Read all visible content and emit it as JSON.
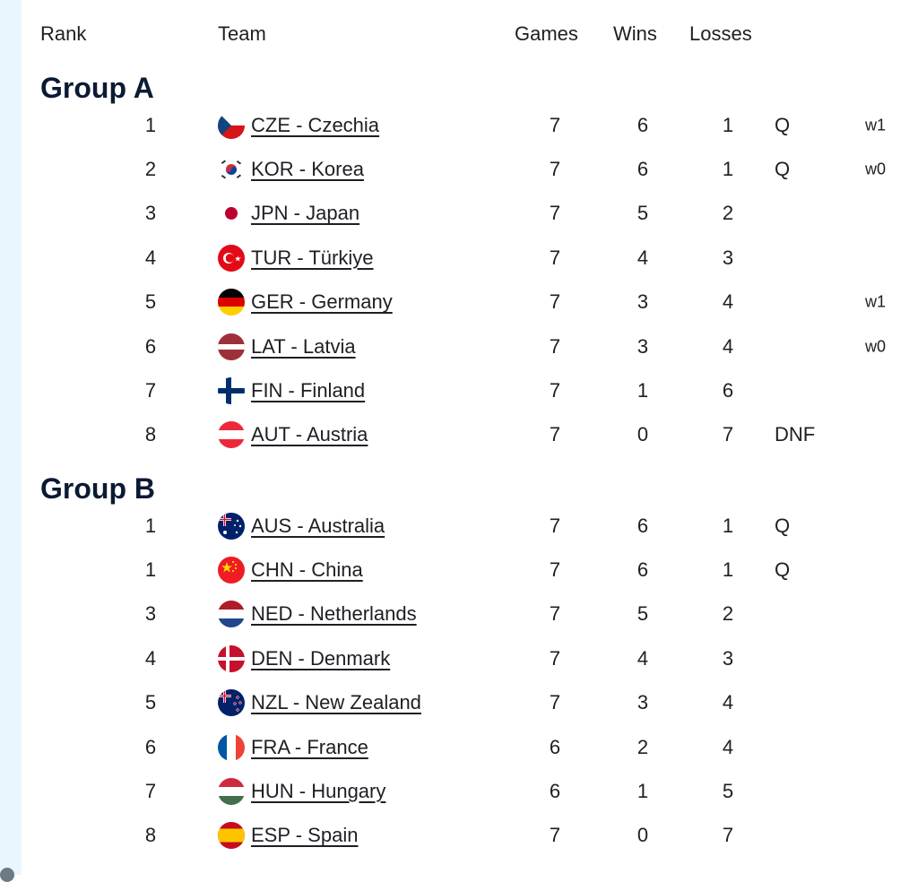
{
  "header": {
    "rank": "Rank",
    "team": "Team",
    "games": "Games",
    "wins": "Wins",
    "losses": "Losses"
  },
  "groups": [
    {
      "title": "Group A",
      "rows": [
        {
          "rank": "1",
          "flag": "czechia-flag-icon",
          "team": "CZE - Czechia",
          "games": "7",
          "wins": "6",
          "losses": "1",
          "status": "Q",
          "note": "w1"
        },
        {
          "rank": "2",
          "flag": "korea-flag-icon",
          "team": "KOR - Korea",
          "games": "7",
          "wins": "6",
          "losses": "1",
          "status": "Q",
          "note": "w0"
        },
        {
          "rank": "3",
          "flag": "japan-flag-icon",
          "team": "JPN - Japan",
          "games": "7",
          "wins": "5",
          "losses": "2",
          "status": "",
          "note": ""
        },
        {
          "rank": "4",
          "flag": "turkiye-flag-icon",
          "team": "TUR - Türkiye",
          "games": "7",
          "wins": "4",
          "losses": "3",
          "status": "",
          "note": ""
        },
        {
          "rank": "5",
          "flag": "germany-flag-icon",
          "team": "GER - Germany",
          "games": "7",
          "wins": "3",
          "losses": "4",
          "status": "",
          "note": "w1"
        },
        {
          "rank": "6",
          "flag": "latvia-flag-icon",
          "team": "LAT - Latvia",
          "games": "7",
          "wins": "3",
          "losses": "4",
          "status": "",
          "note": "w0"
        },
        {
          "rank": "7",
          "flag": "finland-flag-icon",
          "team": "FIN - Finland",
          "games": "7",
          "wins": "1",
          "losses": "6",
          "status": "",
          "note": ""
        },
        {
          "rank": "8",
          "flag": "austria-flag-icon",
          "team": "AUT - Austria",
          "games": "7",
          "wins": "0",
          "losses": "7",
          "status": "DNF",
          "note": ""
        }
      ]
    },
    {
      "title": "Group B",
      "rows": [
        {
          "rank": "1",
          "flag": "australia-flag-icon",
          "team": "AUS - Australia",
          "games": "7",
          "wins": "6",
          "losses": "1",
          "status": "Q",
          "note": ""
        },
        {
          "rank": "1",
          "flag": "china-flag-icon",
          "team": "CHN - China",
          "games": "7",
          "wins": "6",
          "losses": "1",
          "status": "Q",
          "note": ""
        },
        {
          "rank": "3",
          "flag": "netherlands-flag-icon",
          "team": "NED - Netherlands",
          "games": "7",
          "wins": "5",
          "losses": "2",
          "status": "",
          "note": ""
        },
        {
          "rank": "4",
          "flag": "denmark-flag-icon",
          "team": "DEN - Denmark",
          "games": "7",
          "wins": "4",
          "losses": "3",
          "status": "",
          "note": ""
        },
        {
          "rank": "5",
          "flag": "new-zealand-flag-icon",
          "team": "NZL - New Zealand",
          "games": "7",
          "wins": "3",
          "losses": "4",
          "status": "",
          "note": ""
        },
        {
          "rank": "6",
          "flag": "france-flag-icon",
          "team": "FRA - France",
          "games": "6",
          "wins": "2",
          "losses": "4",
          "status": "",
          "note": ""
        },
        {
          "rank": "7",
          "flag": "hungary-flag-icon",
          "team": "HUN - Hungary",
          "games": "6",
          "wins": "1",
          "losses": "5",
          "status": "",
          "note": ""
        },
        {
          "rank": "8",
          "flag": "spain-flag-icon",
          "team": "ESP - Spain",
          "games": "7",
          "wins": "0",
          "losses": "7",
          "status": "",
          "note": ""
        }
      ]
    }
  ],
  "colors": {
    "sidebar_strip": "#eaf6fd",
    "heading": "#0c1a33",
    "text": "#1e1e24"
  }
}
